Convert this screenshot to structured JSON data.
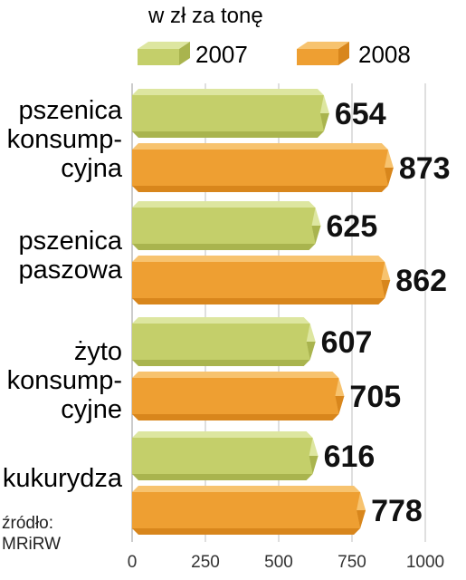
{
  "chart_data": {
    "type": "bar",
    "orientation": "horizontal",
    "unit_label": "w zł za tonę",
    "categories": [
      "pszenica\nkonsump-\ncyjna",
      "pszenica\npaszowa",
      "żyto\nkonsump-\ncyjne",
      "kukurydza"
    ],
    "series": [
      {
        "name": "2007",
        "values": [
          654,
          625,
          607,
          616
        ],
        "color": "#c8d472"
      },
      {
        "name": "2008",
        "values": [
          873,
          862,
          705,
          778
        ],
        "color": "#f0a73a"
      }
    ],
    "value_labels": [
      [
        "654",
        "625",
        "607",
        "616"
      ],
      [
        "873",
        "862",
        "705",
        "778"
      ]
    ],
    "xlim": [
      0,
      1000
    ],
    "xticks": [
      "0",
      "250",
      "500",
      "750",
      "1000"
    ],
    "legend_position": "top",
    "grid": "vertical",
    "source": "źródło:\nMRiRW"
  }
}
